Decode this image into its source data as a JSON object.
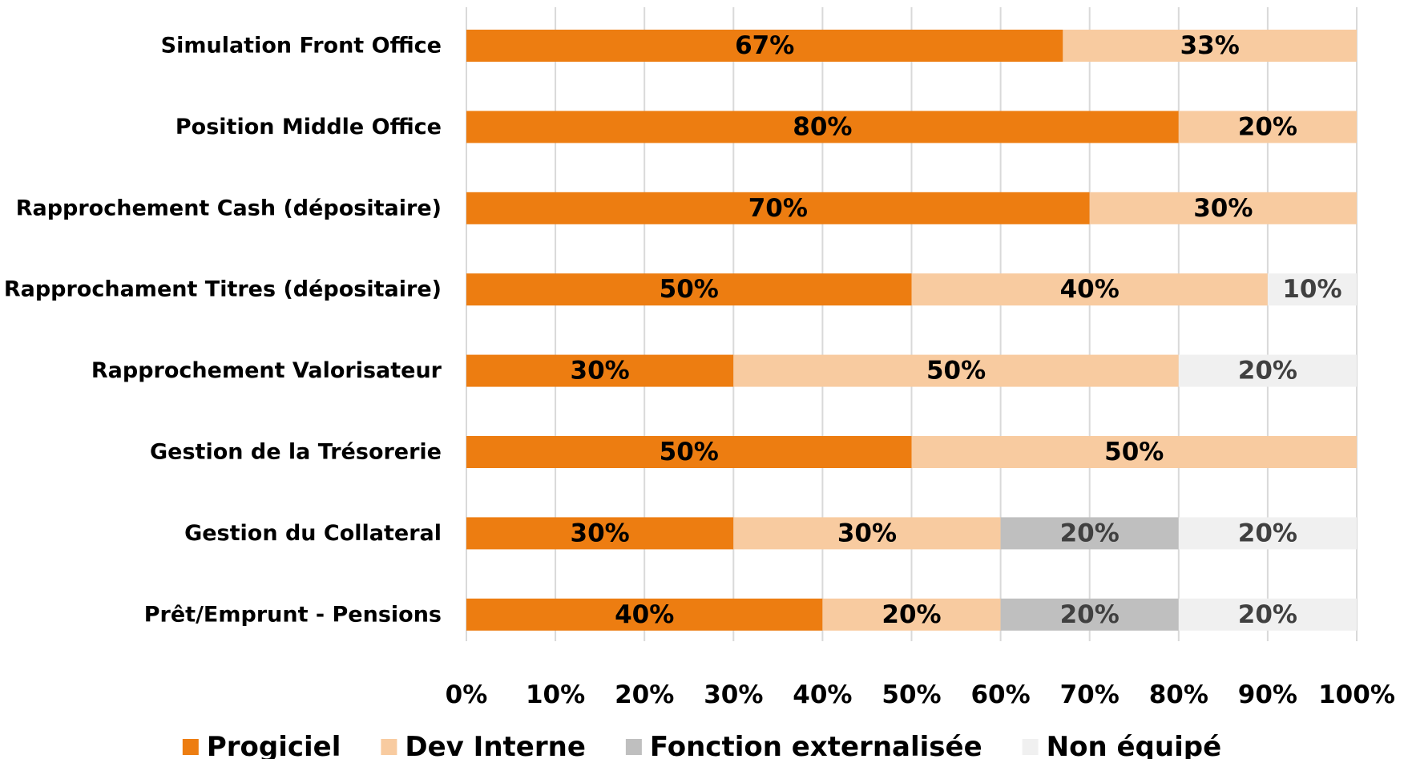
{
  "chart_data": {
    "type": "stacked-bar-horizontal",
    "categories": [
      "Simulation Front Office",
      "Position Middle Office",
      "Rapprochement Cash (dépositaire)",
      "Rapprochament Titres (dépositaire)",
      "Rapprochement Valorisateur",
      "Gestion de la Trésorerie",
      "Gestion du Collateral",
      "Prêt/Emprunt - Pensions"
    ],
    "series": [
      {
        "name": "Progiciel",
        "color": "#ED7D11",
        "values": [
          67,
          80,
          70,
          50,
          30,
          50,
          30,
          40
        ],
        "value_labels": [
          "67%",
          "80%",
          "70%",
          "50%",
          "30%",
          "50%",
          "30%",
          "40%"
        ]
      },
      {
        "name": "Dev Interne",
        "color": "#F8CBA0",
        "values": [
          33,
          20,
          30,
          40,
          50,
          50,
          30,
          20
        ],
        "value_labels": [
          "33%",
          "20%",
          "30%",
          "40%",
          "50%",
          "50%",
          "30%",
          "20%"
        ]
      },
      {
        "name": "Fonction externalisée",
        "color": "#BFBFBF",
        "values": [
          0,
          0,
          0,
          0,
          0,
          0,
          20,
          20
        ],
        "value_labels": [
          null,
          null,
          null,
          null,
          null,
          null,
          "20%",
          "20%"
        ]
      },
      {
        "name": "Non équipé",
        "color": "#F0F0F0",
        "values": [
          0,
          0,
          0,
          10,
          20,
          0,
          20,
          20
        ],
        "value_labels": [
          null,
          null,
          null,
          "10%",
          "20%",
          null,
          "20%",
          "20%"
        ]
      }
    ],
    "xlim": [
      0,
      100
    ],
    "xticks": [
      {
        "value": 0,
        "label": "0%"
      },
      {
        "value": 10,
        "label": "10%"
      },
      {
        "value": 20,
        "label": "20%"
      },
      {
        "value": 30,
        "label": "30%"
      },
      {
        "value": 40,
        "label": "40%"
      },
      {
        "value": 50,
        "label": "50%"
      },
      {
        "value": 60,
        "label": "60%"
      },
      {
        "value": 70,
        "label": "70%"
      },
      {
        "value": 80,
        "label": "80%"
      },
      {
        "value": 90,
        "label": "90%"
      },
      {
        "value": 100,
        "label": "100%"
      }
    ],
    "grid": true,
    "legend": "bottom"
  }
}
